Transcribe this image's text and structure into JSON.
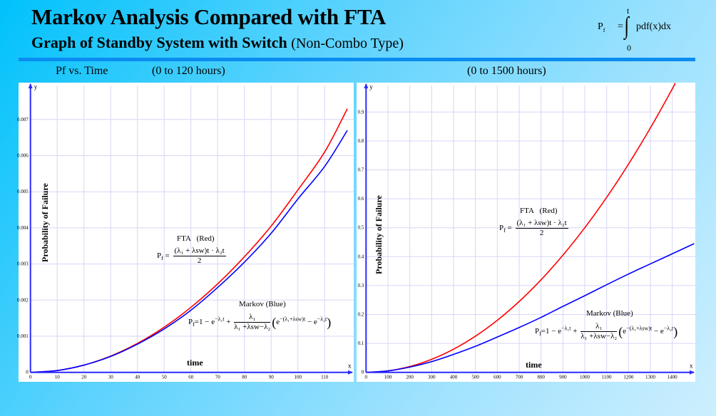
{
  "header": {
    "title": "Markov Analysis Compared with FTA",
    "subtitle_bold": "Graph of Standby System with Switch",
    "subtitle_normal": "(Non-Combo Type)",
    "formula": {
      "lhs": "P",
      "lhs_sub": "f",
      "eq": "=",
      "upper": "t",
      "lower": "0",
      "integrand": "pdf(x)dx"
    },
    "left_label": "Pf vs. Time",
    "left_range": "(0 to 120 hours)",
    "right_range": "(0 to 1500 hours)"
  },
  "colors": {
    "fta": "#ff0000",
    "markov": "#0000ff",
    "axis": "#2a2aff",
    "grid": "#d6d6f8",
    "rule": "#0a8cf0"
  },
  "chart_data": [
    {
      "type": "line",
      "xlabel": "time",
      "ylabel": "Probability of Failure",
      "x_axis_name": "x",
      "y_axis_name": "y",
      "xlim": [
        0,
        120
      ],
      "ylim": [
        0,
        0.008
      ],
      "xticks": [
        0,
        10,
        20,
        30,
        40,
        50,
        60,
        70,
        80,
        90,
        100,
        110
      ],
      "yticks": [
        0,
        0.001,
        0.002,
        0.003,
        0.004,
        0.005,
        0.006,
        0.007
      ],
      "ytick_labels": [
        "0",
        "0.001",
        "0.002",
        "0.003",
        "0.004",
        "0.005",
        "0.006",
        "0.007"
      ],
      "grid": true,
      "series": [
        {
          "key": "fta",
          "x": [
            0,
            10,
            20,
            30,
            40,
            50,
            60,
            70,
            80,
            90,
            100,
            110,
            118.5
          ],
          "y": [
            0,
            5e-05,
            0.0002,
            0.00045,
            0.0008,
            0.00125,
            0.0018,
            0.00245,
            0.0032,
            0.00405,
            0.00505,
            0.0061,
            0.0073
          ]
        },
        {
          "key": "markov",
          "x": [
            0,
            10,
            20,
            30,
            40,
            50,
            60,
            70,
            80,
            90,
            100,
            110,
            118.5
          ],
          "y": [
            0,
            5e-05,
            0.0002,
            0.00044,
            0.00078,
            0.0012,
            0.00172,
            0.00235,
            0.00305,
            0.00385,
            0.0048,
            0.0057,
            0.0067
          ]
        }
      ],
      "annotations": {
        "fta_label": "FTA   (Red)",
        "markov_label": "Markov (Blue)"
      }
    },
    {
      "type": "line",
      "xlabel": "time",
      "ylabel": "Probability of Failure",
      "x_axis_name": "x",
      "y_axis_name": "y",
      "xlim": [
        0,
        1500
      ],
      "ylim": [
        0,
        1.0
      ],
      "xticks": [
        0,
        100,
        200,
        300,
        400,
        500,
        600,
        700,
        800,
        900,
        1000,
        1100,
        1200,
        1300,
        1400
      ],
      "yticks": [
        0,
        0.1,
        0.2,
        0.3,
        0.4,
        0.5,
        0.6,
        0.7,
        0.8,
        0.9
      ],
      "ytick_labels": [
        "0",
        "0.1",
        "0.2",
        "0.3",
        "0.4",
        "0.5",
        "0.6",
        "0.7",
        "0.8",
        "0.9"
      ],
      "grid": true,
      "series": [
        {
          "key": "fta",
          "x": [
            0,
            100,
            200,
            300,
            400,
            500,
            600,
            700,
            800,
            900,
            1000,
            1100,
            1200,
            1300,
            1400,
            1412
          ],
          "y": [
            0,
            0.005,
            0.02,
            0.045,
            0.08,
            0.125,
            0.18,
            0.245,
            0.32,
            0.405,
            0.5,
            0.605,
            0.72,
            0.845,
            0.98,
            1.0
          ]
        },
        {
          "key": "markov",
          "x": [
            0,
            100,
            200,
            300,
            400,
            500,
            600,
            700,
            800,
            900,
            1000,
            1100,
            1200,
            1300,
            1400,
            1500
          ],
          "y": [
            0,
            0.005,
            0.018,
            0.037,
            0.062,
            0.09,
            0.122,
            0.155,
            0.19,
            0.228,
            0.265,
            0.303,
            0.34,
            0.375,
            0.41,
            0.445
          ]
        }
      ],
      "annotations": {
        "fta_label": "FTA   (Red)",
        "markov_label": "Markov (Blue)"
      }
    }
  ],
  "formulas": {
    "fta": {
      "lhs": "P",
      "lhs_sub": "f",
      "eq": "=",
      "numerator": "(λ₁ + λsw)t · λ₂t",
      "denominator": "2"
    },
    "markov": {
      "lhs": "P",
      "lhs_sub": "f",
      "term1": "=1 − e",
      "term1_sup": "−λ₁t",
      "plus": "+",
      "numerator": "λ₁",
      "denominator": "λ₁ +λsw−λ₂",
      "paren_open": "(",
      "e1": "e",
      "e1_sup": "−(λ₁+λsw)t",
      "minus": "−",
      "e2": "e",
      "e2_sup": "−λ₂t",
      "paren_close": ")"
    }
  }
}
